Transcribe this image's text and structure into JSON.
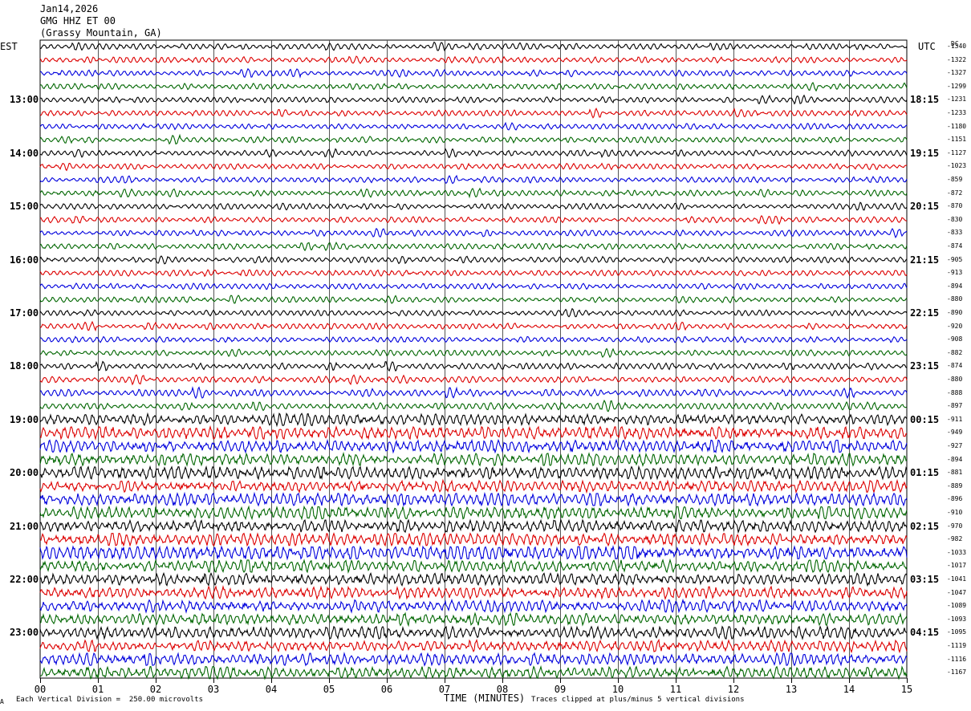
{
  "header": {
    "date": "Jan14,2026",
    "station": "GMG HHZ ET 00",
    "location": "(Grassy Mountain, GA)"
  },
  "left_axis_label": "EST",
  "right_axis_label": "UTC",
  "dc_label": "DC",
  "footer": {
    "scale": "Each Vertical Division =  250.00 microvolts",
    "xlabel": "TIME (MINUTES)",
    "clip_note": "Traces clipped at plus/minus 5 vertical divisions",
    "corner_mark": "A"
  },
  "chart_data": {
    "type": "line",
    "title": "",
    "xlabel": "TIME (MINUTES)",
    "xlim": [
      0,
      15
    ],
    "x_ticks": [
      "00",
      "01",
      "02",
      "03",
      "04",
      "05",
      "06",
      "07",
      "08",
      "09",
      "10",
      "11",
      "12",
      "13",
      "14",
      "15"
    ],
    "trace_colors": [
      "#000000",
      "#dd0000",
      "#0000dd",
      "#006600"
    ],
    "left_time_labels": [
      "13:00",
      "14:00",
      "15:00",
      "16:00",
      "17:00",
      "18:00",
      "19:00",
      "20:00",
      "21:00",
      "22:00",
      "23:00"
    ],
    "right_time_labels": [
      "18:15",
      "19:15",
      "20:15",
      "21:15",
      "22:15",
      "23:15",
      "00:15",
      "01:15",
      "02:15",
      "03:15",
      "04:15"
    ],
    "dc_offsets": [
      -1340,
      -1322,
      -1327,
      -1299,
      -1231,
      -1233,
      -1180,
      -1151,
      -1127,
      -1023,
      -859,
      -872,
      -870,
      -830,
      -833,
      -874,
      -905,
      -913,
      -894,
      -880,
      -890,
      -920,
      -908,
      -882,
      -874,
      -880,
      -888,
      -897,
      -911,
      -949,
      -927,
      -894,
      -881,
      -889,
      -896,
      -910,
      -970,
      -982,
      -1033,
      -1017,
      -1041,
      -1047,
      -1089,
      -1093,
      -1095,
      -1119,
      -1116,
      -1167
    ],
    "activity_level": [
      1.0,
      1.0,
      1.0,
      1.0,
      1.0,
      1.0,
      1.0,
      1.0,
      1.0,
      1.0,
      1.0,
      1.0,
      1.0,
      1.0,
      1.0,
      1.0,
      1.0,
      1.0,
      1.0,
      1.0,
      1.0,
      1.0,
      1.0,
      1.0,
      1.1,
      1.1,
      1.2,
      1.3,
      1.6,
      2.0,
      1.9,
      1.8,
      2.0,
      1.8,
      2.0,
      1.9,
      1.9,
      1.9,
      2.4,
      1.8,
      1.8,
      1.8,
      1.8,
      1.8,
      1.8,
      1.7,
      1.8,
      1.8
    ]
  }
}
